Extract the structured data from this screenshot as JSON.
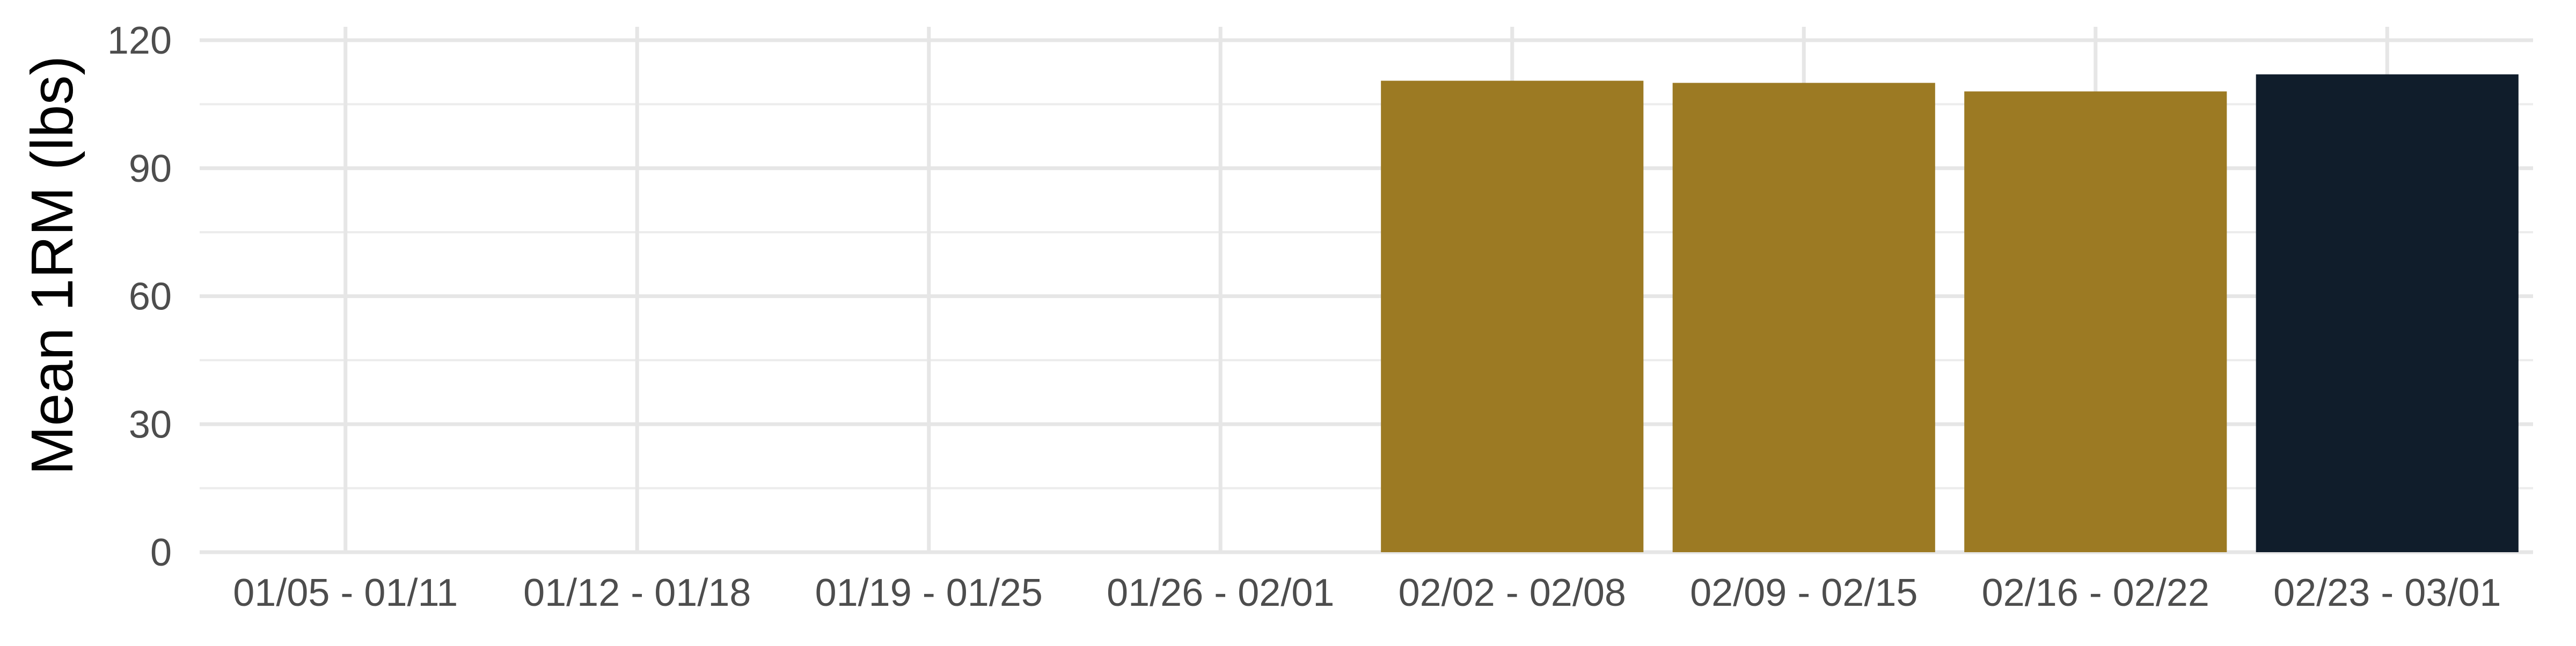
{
  "chart_data": {
    "type": "bar",
    "title": "",
    "xlabel": "",
    "ylabel": "Mean 1RM (lbs)",
    "categories": [
      "01/05 - 01/11",
      "01/12 - 01/18",
      "01/19 - 01/25",
      "01/26 - 02/01",
      "02/02 - 02/08",
      "02/09 - 02/15",
      "02/16 - 02/22",
      "02/23 - 03/01"
    ],
    "values": [
      null,
      null,
      null,
      null,
      110.5,
      110,
      108,
      112
    ],
    "ylim": [
      0,
      120
    ],
    "yticks": [
      0,
      30,
      60,
      90,
      120
    ],
    "grid": true,
    "bar_colors": [
      "#9c7a23",
      "#9c7a23",
      "#9c7a23",
      "#9c7a23",
      "#9c7a23",
      "#9c7a23",
      "#9c7a23",
      "#101d2b"
    ],
    "legend": "none"
  }
}
